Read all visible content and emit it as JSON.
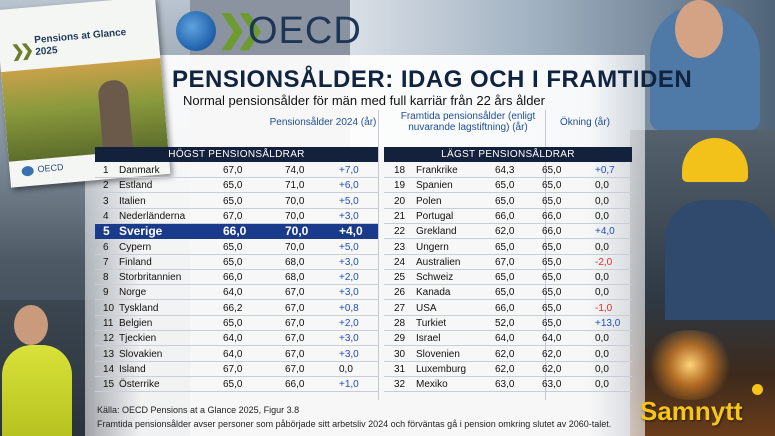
{
  "book": {
    "title": "Pensions at Glance 2025",
    "logo": "OECD"
  },
  "logo": {
    "text": "OECD"
  },
  "brand": {
    "text": "Samnytt"
  },
  "chart_data": {
    "type": "table",
    "title": "PENSIONSÅLDER: IDAG OCH I FRAMTIDEN",
    "subtitle": "Normal pensionsålder för män med full karriär från 22 års ålder",
    "columns": {
      "current": "Pensionsålder 2024 (år)",
      "future": "Framtida pensionsålder (enligt nuvarande lagstiftning) (år)",
      "increase": "Ökning (år)"
    },
    "highest": {
      "label": "HÖGST PENSIONSÅLDRAR",
      "rows": [
        {
          "rank": "1",
          "country": "Danmark",
          "now": "67,0",
          "future": "74,0",
          "change": "+7,0"
        },
        {
          "rank": "2",
          "country": "Estland",
          "now": "65,0",
          "future": "71,0",
          "change": "+6,0"
        },
        {
          "rank": "3",
          "country": "Italien",
          "now": "65,0",
          "future": "70,0",
          "change": "+5,0"
        },
        {
          "rank": "4",
          "country": "Nederländerna",
          "now": "67,0",
          "future": "70,0",
          "change": "+3,0"
        },
        {
          "rank": "5",
          "country": "Sverige",
          "now": "66,0",
          "future": "70,0",
          "change": "+4,0",
          "highlight": true
        },
        {
          "rank": "6",
          "country": "Cypern",
          "now": "65,0",
          "future": "70,0",
          "change": "+5,0"
        },
        {
          "rank": "7",
          "country": "Finland",
          "now": "65,0",
          "future": "68,0",
          "change": "+3,0"
        },
        {
          "rank": "8",
          "country": "Storbritannien",
          "now": "66,0",
          "future": "68,0",
          "change": "+2,0"
        },
        {
          "rank": "9",
          "country": "Norge",
          "now": "64,0",
          "future": "67,0",
          "change": "+3,0"
        },
        {
          "rank": "10",
          "country": "Tyskland",
          "now": "66,2",
          "future": "67,0",
          "change": "+0,8"
        },
        {
          "rank": "11",
          "country": "Belgien",
          "now": "65,0",
          "future": "67,0",
          "change": "+2,0"
        },
        {
          "rank": "12",
          "country": "Tjeckien",
          "now": "64,0",
          "future": "67,0",
          "change": "+3,0"
        },
        {
          "rank": "13",
          "country": "Slovakien",
          "now": "64,0",
          "future": "67,0",
          "change": "+3,0"
        },
        {
          "rank": "14",
          "country": "Island",
          "now": "67,0",
          "future": "67,0",
          "change": "0,0"
        },
        {
          "rank": "15",
          "country": "Österrike",
          "now": "65,0",
          "future": "66,0",
          "change": "+1,0"
        }
      ]
    },
    "lowest": {
      "label": "LÄGST PENSIONSÅLDRAR",
      "rows": [
        {
          "rank": "18",
          "country": "Frankrike",
          "now": "64,3",
          "future": "65,0",
          "change": "+0,7"
        },
        {
          "rank": "19",
          "country": "Spanien",
          "now": "65,0",
          "future": "65,0",
          "change": "0,0"
        },
        {
          "rank": "20",
          "country": "Polen",
          "now": "65,0",
          "future": "65,0",
          "change": "0,0"
        },
        {
          "rank": "21",
          "country": "Portugal",
          "now": "66,0",
          "future": "66,0",
          "change": "0,0"
        },
        {
          "rank": "22",
          "country": "Grekland",
          "now": "62,0",
          "future": "66,0",
          "change": "+4,0"
        },
        {
          "rank": "23",
          "country": "Ungern",
          "now": "65,0",
          "future": "65,0",
          "change": "0,0"
        },
        {
          "rank": "24",
          "country": "Australien",
          "now": "67,0",
          "future": "65,0",
          "change": "-2,0"
        },
        {
          "rank": "25",
          "country": "Schweiz",
          "now": "65,0",
          "future": "65,0",
          "change": "0,0"
        },
        {
          "rank": "26",
          "country": "Kanada",
          "now": "65,0",
          "future": "65,0",
          "change": "0,0"
        },
        {
          "rank": "27",
          "country": "USA",
          "now": "66,0",
          "future": "65,0",
          "change": "-1,0"
        },
        {
          "rank": "28",
          "country": "Turkiet",
          "now": "52,0",
          "future": "65,0",
          "change": "+13,0"
        },
        {
          "rank": "29",
          "country": "Israel",
          "now": "64,0",
          "future": "64,0",
          "change": "0,0"
        },
        {
          "rank": "30",
          "country": "Slovenien",
          "now": "62,0",
          "future": "62,0",
          "change": "0,0"
        },
        {
          "rank": "31",
          "country": "Luxemburg",
          "now": "62,0",
          "future": "62,0",
          "change": "0,0"
        },
        {
          "rank": "32",
          "country": "Mexiko",
          "now": "63,0",
          "future": "63,0",
          "change": "0,0"
        }
      ]
    },
    "colors": {
      "header_bg": "#14213d",
      "highlight_bg": "#1a3a8c",
      "positive": "#1f4fb8",
      "negative": "#d93025",
      "column_header": "#1f4e96"
    }
  },
  "footer": {
    "source": "Källa: OECD Pensions at a Glance 2025, Figur 3.8",
    "note": "Framtida pensionsålder avser personer som påbörjade sitt arbetsliv 2024 och förväntas gå i pension omkring slutet av 2060-talet."
  }
}
